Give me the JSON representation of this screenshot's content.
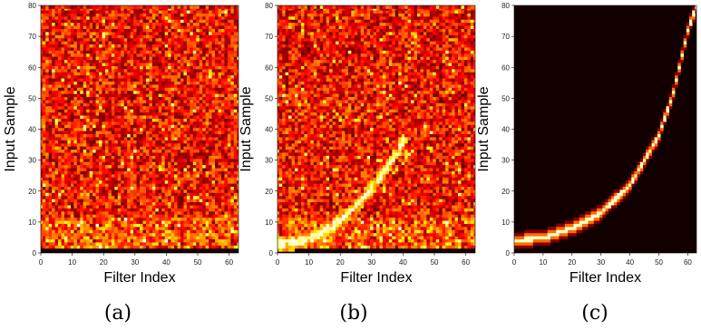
{
  "chart_data": [
    {
      "type": "heatmap",
      "panel_label": "(a)",
      "xlabel": "Filter Index",
      "ylabel": "Input Sample",
      "xlim": [
        0,
        63
      ],
      "ylim": [
        0,
        80
      ],
      "xticks": [
        0,
        10,
        20,
        30,
        40,
        50,
        60
      ],
      "yticks": [
        0,
        10,
        20,
        30,
        40,
        50,
        60,
        70,
        80
      ],
      "colormap": "hot",
      "pattern": "scattered noise; brighter speckles concentrated near low input samples (0-12); dark band at input samples 0-1",
      "seed": 11
    },
    {
      "type": "heatmap",
      "panel_label": "(b)",
      "xlabel": "Filter Index",
      "ylabel": "Input Sample",
      "xlim": [
        0,
        63
      ],
      "ylim": [
        0,
        80
      ],
      "xticks": [
        0,
        10,
        20,
        30,
        40,
        50,
        60
      ],
      "yticks": [
        0,
        10,
        20,
        30,
        40,
        50,
        60,
        70,
        80
      ],
      "colormap": "hot",
      "pattern": "scattered noise with an emerging bright curve from (0,3) rising to about (40,36)",
      "seed": 23
    },
    {
      "type": "heatmap",
      "panel_label": "(c)",
      "xlabel": "Filter Index",
      "ylabel": "Input Sample",
      "xlim": [
        0,
        63
      ],
      "ylim": [
        0,
        80
      ],
      "xticks": [
        0,
        10,
        20,
        30,
        40,
        50,
        60
      ],
      "yticks": [
        0,
        10,
        20,
        30,
        40,
        50,
        60,
        70,
        80
      ],
      "colormap": "hot",
      "pattern": "black background with a single thin bright curve: exponential rise from (0,4) to (63,80)",
      "curve_points": [
        [
          0,
          4
        ],
        [
          10,
          5
        ],
        [
          20,
          8
        ],
        [
          30,
          13
        ],
        [
          40,
          22
        ],
        [
          50,
          38
        ],
        [
          55,
          52
        ],
        [
          60,
          72
        ],
        [
          63,
          80
        ]
      ]
    }
  ]
}
